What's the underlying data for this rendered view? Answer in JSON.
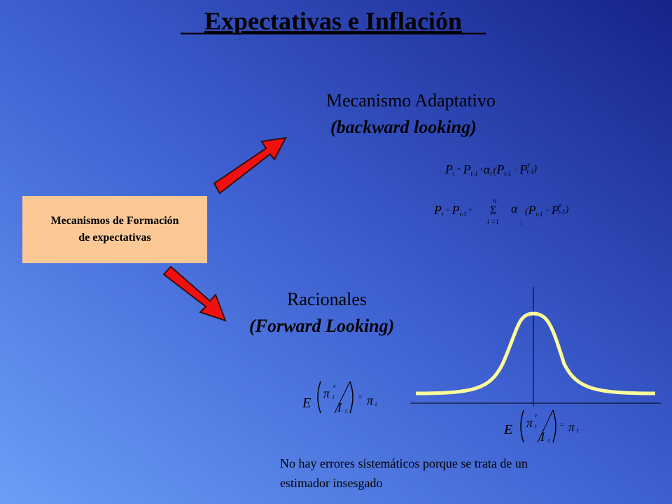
{
  "title": "Expectativas e Inflación",
  "box": {
    "lines": [
      "Mecanismos de Formación",
      "de expectativas"
    ]
  },
  "adaptive": {
    "heading": "Mecanismo Adaptativo",
    "subheading": "(backward looking)",
    "formula1": [
      "P",
      "t",
      "=",
      "P",
      "t-1",
      "+",
      "α",
      "t",
      "(",
      "P",
      "t-1",
      "−",
      "P",
      "e",
      "t-1",
      ")"
    ],
    "formula2": [
      "P",
      "t",
      "=",
      "P",
      "t-1",
      "+",
      "n",
      "Σ",
      "i =1",
      "α",
      "i",
      "(",
      "P",
      "t-1",
      "−",
      "P",
      "e",
      "t-1",
      ")"
    ]
  },
  "rational": {
    "heading": "Racionales",
    "subheading": "(Forward Looking)",
    "formula1": [
      "E",
      "π",
      "e",
      "t",
      "I",
      "t",
      "=",
      "π",
      "t"
    ],
    "formula2": [
      "E",
      "π",
      "e",
      "t",
      "I",
      "t",
      "=",
      "π",
      "t"
    ],
    "note": [
      "No hay errores sistemáticos porque se trata de un",
      "estimador insesgado"
    ]
  }
}
